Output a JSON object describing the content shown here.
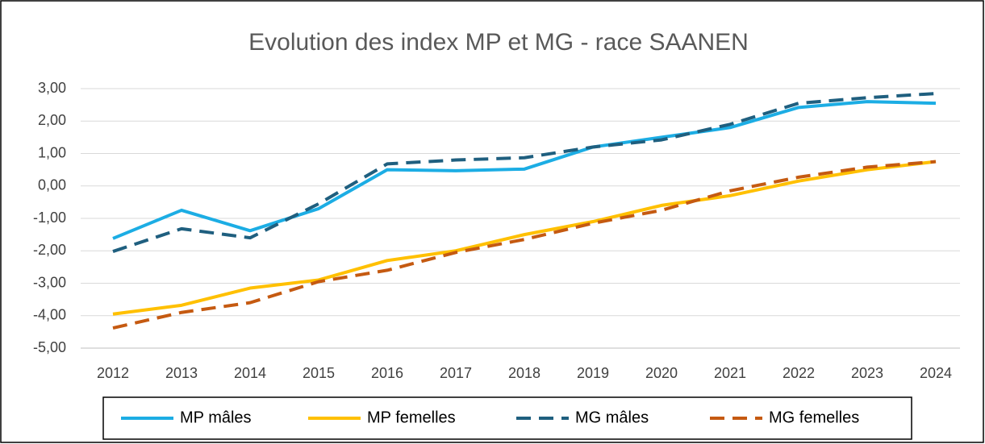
{
  "chart_data": {
    "type": "line",
    "title": "Evolution des index MP et MG - race SAANEN",
    "categories": [
      "2012",
      "2013",
      "2014",
      "2015",
      "2016",
      "2017",
      "2018",
      "2019",
      "2020",
      "2021",
      "2022",
      "2023",
      "2024"
    ],
    "series": [
      {
        "name": "MP mâles",
        "color": "#1cadE4",
        "dash": false,
        "values": [
          -1.62,
          -0.75,
          -1.38,
          -0.7,
          0.5,
          0.47,
          0.52,
          1.2,
          1.5,
          1.8,
          2.42,
          2.6,
          2.55
        ]
      },
      {
        "name": "MP femelles",
        "color": "#ffc000",
        "dash": false,
        "values": [
          -3.95,
          -3.68,
          -3.15,
          -2.9,
          -2.3,
          -2.0,
          -1.5,
          -1.1,
          -0.6,
          -0.3,
          0.15,
          0.5,
          0.75
        ]
      },
      {
        "name": "MG mâles",
        "color": "#1f5f7f",
        "dash": true,
        "values": [
          -2.02,
          -1.32,
          -1.6,
          -0.55,
          0.68,
          0.8,
          0.87,
          1.2,
          1.42,
          1.9,
          2.55,
          2.72,
          2.85
        ]
      },
      {
        "name": "MG femelles",
        "color": "#c55a11",
        "dash": true,
        "values": [
          -4.38,
          -3.9,
          -3.6,
          -2.95,
          -2.6,
          -2.05,
          -1.65,
          -1.15,
          -0.75,
          -0.15,
          0.27,
          0.58,
          0.75
        ]
      }
    ],
    "ylim": [
      -5,
      3
    ],
    "yticks": [
      {
        "value": -5,
        "label": "-5,00"
      },
      {
        "value": -4,
        "label": "-4,00"
      },
      {
        "value": -3,
        "label": "-3,00"
      },
      {
        "value": -2,
        "label": "-2,00"
      },
      {
        "value": -1,
        "label": "-1,00"
      },
      {
        "value": 0,
        "label": "0,00"
      },
      {
        "value": 1,
        "label": "1,00"
      },
      {
        "value": 2,
        "label": "2,00"
      },
      {
        "value": 3,
        "label": "3,00"
      }
    ],
    "grid": true,
    "legend": "bottom"
  }
}
